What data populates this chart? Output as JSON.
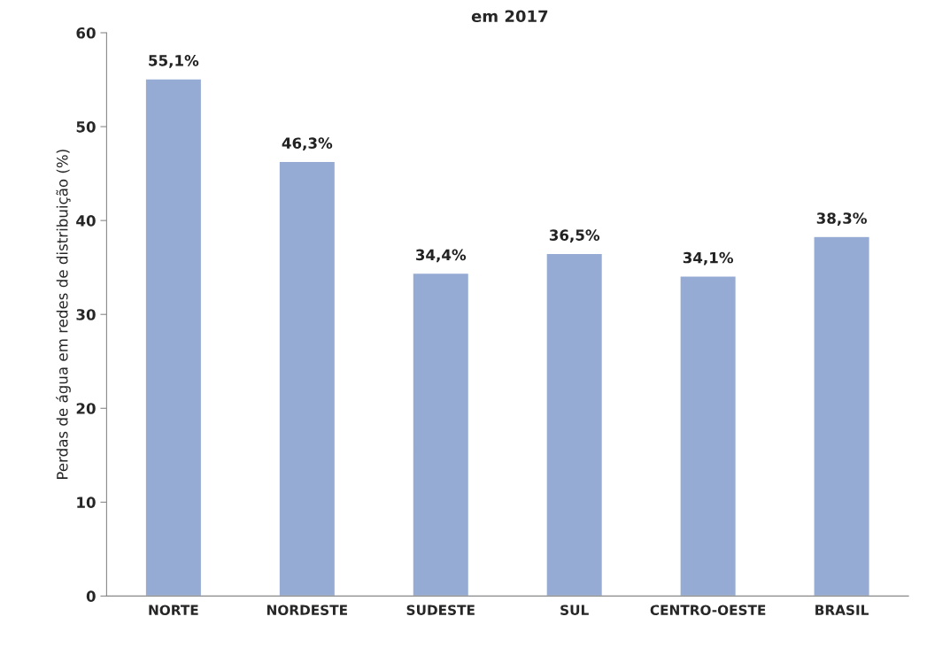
{
  "chart_data": {
    "type": "bar",
    "title": "em 2017",
    "ylabel": "Perdas de água em redes de distribuição (%)",
    "categories": [
      "NORTE",
      "NORDESTE",
      "SUDESTE",
      "SUL",
      "CENTRO-OESTE",
      "BRASIL"
    ],
    "values": [
      55.1,
      46.3,
      34.4,
      36.5,
      34.1,
      38.3
    ],
    "value_labels": [
      "55,1%",
      "46,3%",
      "34,4%",
      "36,5%",
      "34,1%",
      "38,3%"
    ],
    "color": "#95abd3",
    "ylim": [
      0,
      60
    ],
    "yticks": [
      0,
      10,
      20,
      30,
      40,
      50,
      60
    ],
    "grid": false,
    "legend": false
  }
}
